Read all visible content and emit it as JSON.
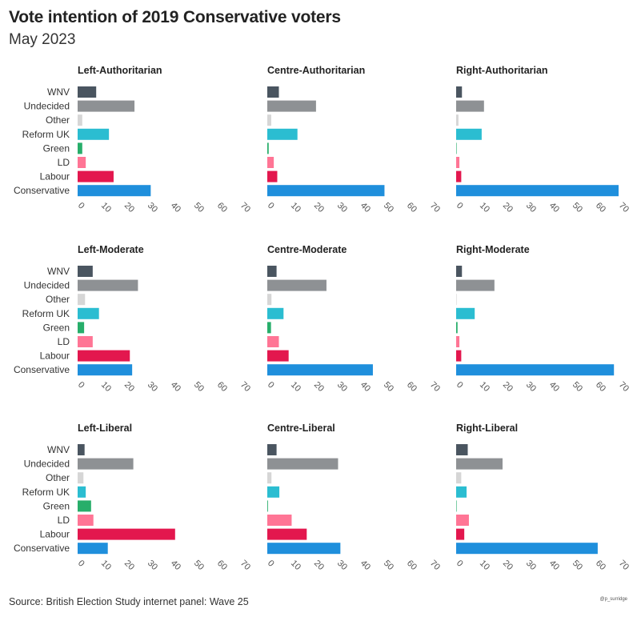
{
  "title": "Vote intention of 2019 Conservative voters",
  "subtitle": "May 2023",
  "source": "Source: British Election Study internet panel: Wave 25",
  "credit": "@p_surridge",
  "colors": {
    "WNV": "#4a5560",
    "Undecided": "#8e9194",
    "Other": "#d6d6d6",
    "Reform UK": "#2bbdd1",
    "Green": "#27ae6a",
    "LD": "#ff7595",
    "Labour": "#e3174e",
    "Conservative": "#1f8fdc"
  },
  "chart_data": [
    {
      "type": "bar",
      "orientation": "horizontal",
      "title": "Left-Authoritarian",
      "categories": [
        "WNV",
        "Undecided",
        "Other",
        "Reform UK",
        "Green",
        "LD",
        "Labour",
        "Conservative"
      ],
      "values": [
        8,
        24.5,
        2,
        13.5,
        2,
        3.5,
        15.5,
        31.5
      ],
      "xlim": [
        0,
        70
      ],
      "xticks": [
        0,
        10,
        20,
        30,
        40,
        50,
        60,
        70
      ]
    },
    {
      "type": "bar",
      "orientation": "horizontal",
      "title": "Centre-Authoritarian",
      "categories": [
        "WNV",
        "Undecided",
        "Other",
        "Reform UK",
        "Green",
        "LD",
        "Labour",
        "Conservative"
      ],
      "values": [
        5,
        21,
        1.7,
        13,
        0.6,
        2.8,
        4.3,
        50.5
      ],
      "xlim": [
        0,
        70
      ],
      "xticks": [
        0,
        10,
        20,
        30,
        40,
        50,
        60,
        70
      ]
    },
    {
      "type": "bar",
      "orientation": "horizontal",
      "title": "Right-Authoritarian",
      "categories": [
        "WNV",
        "Undecided",
        "Other",
        "Reform UK",
        "Green",
        "LD",
        "Labour",
        "Conservative"
      ],
      "values": [
        2.5,
        12,
        1,
        11,
        0.2,
        1.4,
        2.2,
        70
      ],
      "xlim": [
        0,
        70
      ],
      "xticks": [
        0,
        10,
        20,
        30,
        40,
        50,
        60,
        70
      ]
    },
    {
      "type": "bar",
      "orientation": "horizontal",
      "title": "Left-Moderate",
      "categories": [
        "WNV",
        "Undecided",
        "Other",
        "Reform UK",
        "Green",
        "LD",
        "Labour",
        "Conservative"
      ],
      "values": [
        6.5,
        26,
        3.2,
        9.2,
        2.8,
        6.5,
        22.5,
        23.5
      ],
      "xlim": [
        0,
        70
      ],
      "xticks": [
        0,
        10,
        20,
        30,
        40,
        50,
        60,
        70
      ]
    },
    {
      "type": "bar",
      "orientation": "horizontal",
      "title": "Centre-Moderate",
      "categories": [
        "WNV",
        "Undecided",
        "Other",
        "Reform UK",
        "Green",
        "LD",
        "Labour",
        "Conservative"
      ],
      "values": [
        4,
        25.5,
        1.8,
        7,
        1.6,
        5,
        9.2,
        45.5
      ],
      "xlim": [
        0,
        70
      ],
      "xticks": [
        0,
        10,
        20,
        30,
        40,
        50,
        60,
        70
      ]
    },
    {
      "type": "bar",
      "orientation": "horizontal",
      "title": "Right-Moderate",
      "categories": [
        "WNV",
        "Undecided",
        "Other",
        "Reform UK",
        "Green",
        "LD",
        "Labour",
        "Conservative"
      ],
      "values": [
        2.5,
        16.5,
        0.2,
        8,
        0.6,
        1.4,
        2.2,
        68
      ],
      "xlim": [
        0,
        70
      ],
      "xticks": [
        0,
        10,
        20,
        30,
        40,
        50,
        60,
        70
      ]
    },
    {
      "type": "bar",
      "orientation": "horizontal",
      "title": "Left-Liberal",
      "categories": [
        "WNV",
        "Undecided",
        "Other",
        "Reform UK",
        "Green",
        "LD",
        "Labour",
        "Conservative"
      ],
      "values": [
        3,
        24,
        2.5,
        3.5,
        5.8,
        6.8,
        42,
        13
      ],
      "xlim": [
        0,
        70
      ],
      "xticks": [
        0,
        10,
        20,
        30,
        40,
        50,
        60,
        70
      ]
    },
    {
      "type": "bar",
      "orientation": "horizontal",
      "title": "Centre-Liberal",
      "categories": [
        "WNV",
        "Undecided",
        "Other",
        "Reform UK",
        "Green",
        "LD",
        "Labour",
        "Conservative"
      ],
      "values": [
        4,
        30.5,
        1.8,
        5.2,
        0.3,
        10.5,
        17,
        31.5
      ],
      "xlim": [
        0,
        70
      ],
      "xticks": [
        0,
        10,
        20,
        30,
        40,
        50,
        60,
        70
      ]
    },
    {
      "type": "bar",
      "orientation": "horizontal",
      "title": "Right-Liberal",
      "categories": [
        "WNV",
        "Undecided",
        "Other",
        "Reform UK",
        "Green",
        "LD",
        "Labour",
        "Conservative"
      ],
      "values": [
        5,
        20,
        2.2,
        4.5,
        0,
        5.5,
        3.5,
        61
      ],
      "xlim": [
        0,
        70
      ],
      "xticks": [
        0,
        10,
        20,
        30,
        40,
        50,
        60,
        70
      ]
    }
  ]
}
